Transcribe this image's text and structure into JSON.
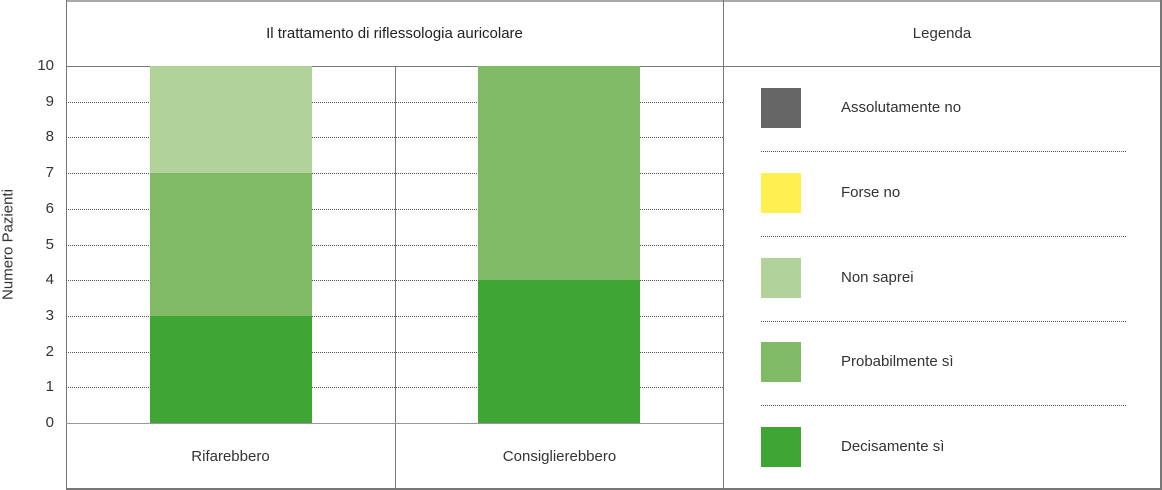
{
  "chart_data": {
    "type": "bar",
    "stacked": true,
    "title": "Il trattamento di riflessologia auricolare",
    "xlabel": "",
    "ylabel": "Numero Pazienti",
    "ylim": [
      0,
      10
    ],
    "yticks": [
      "0",
      "1",
      "2",
      "3",
      "4",
      "5",
      "6",
      "7",
      "8",
      "9",
      "10"
    ],
    "grid": true,
    "legend_title": "Legenda",
    "legend_position": "right",
    "categories": [
      "Rifarebbero",
      "Consiglierebbero"
    ],
    "series": [
      {
        "name": "Assolutamente no",
        "color": "#666666",
        "values": [
          0,
          0
        ]
      },
      {
        "name": "Forse no",
        "color": "#FFF050",
        "values": [
          0,
          0
        ]
      },
      {
        "name": "Non saprei",
        "color": "#B1D39A",
        "values": [
          3,
          0
        ]
      },
      {
        "name": "Probabilmente sì",
        "color": "#80BA65",
        "values": [
          4,
          6
        ]
      },
      {
        "name": "Decisamente sì",
        "color": "#3FA535",
        "values": [
          3,
          4
        ]
      }
    ]
  }
}
